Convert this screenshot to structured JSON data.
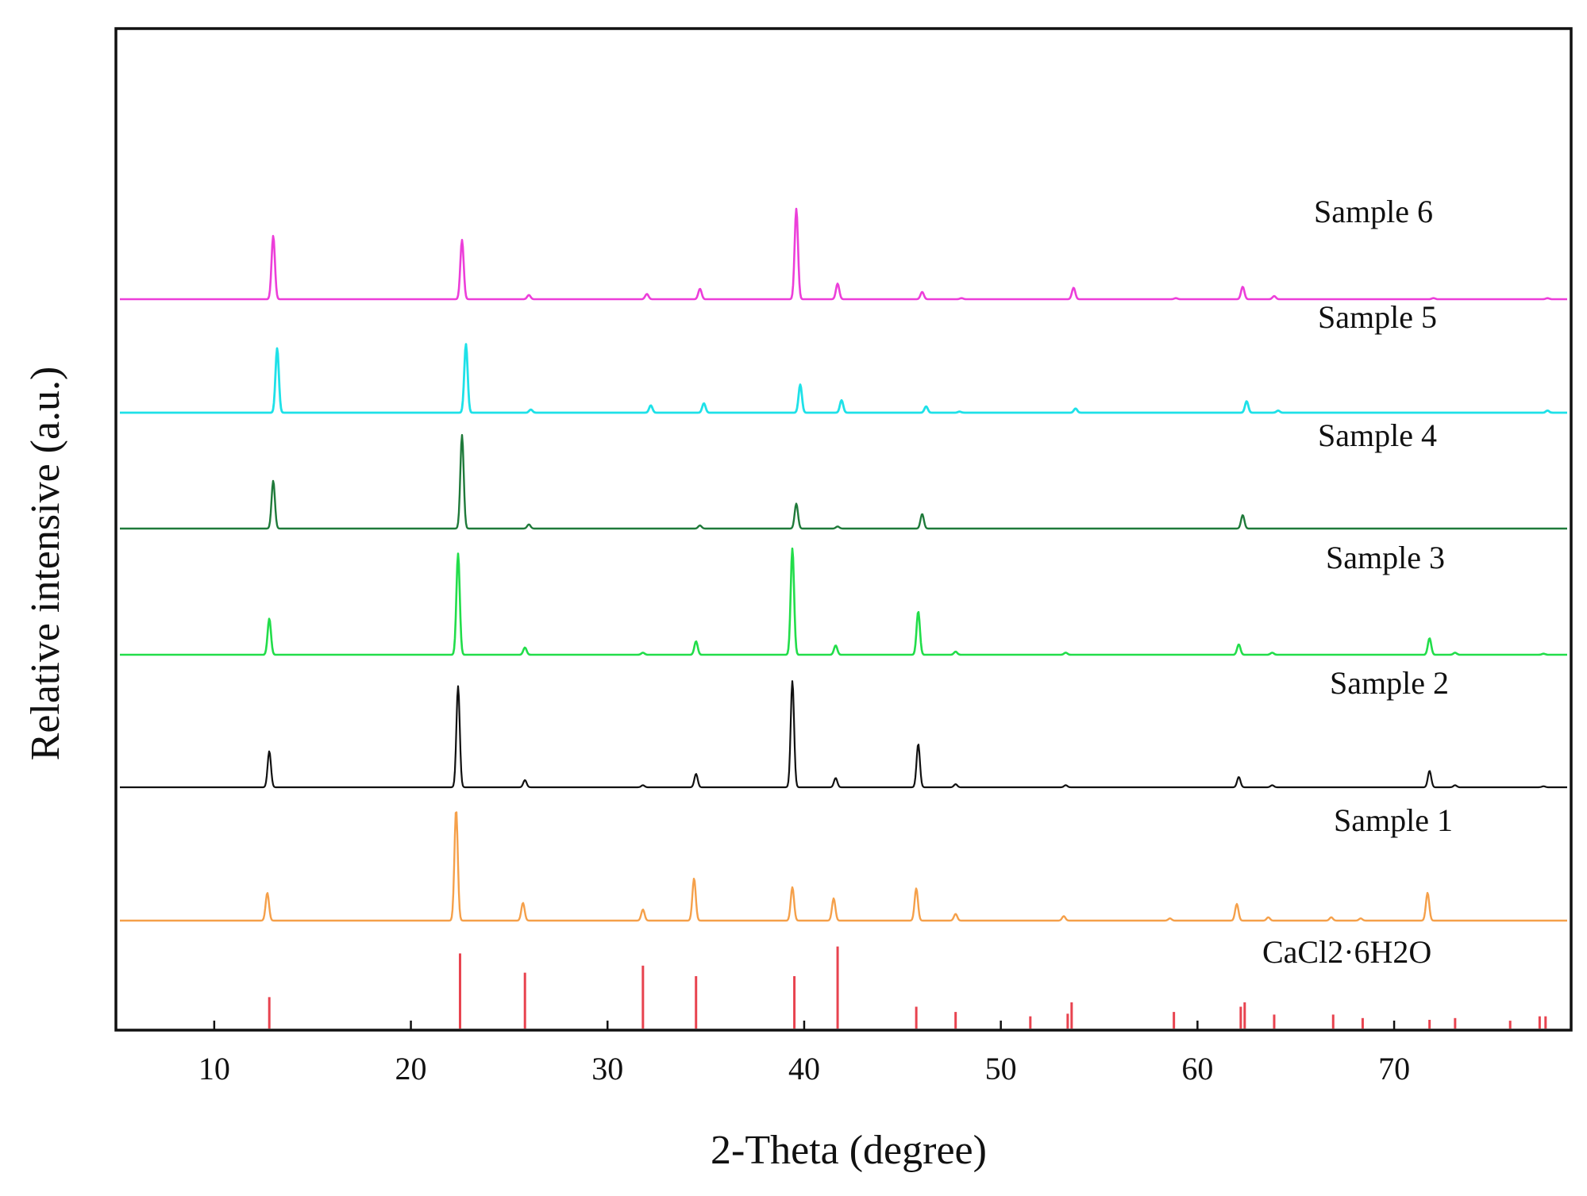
{
  "chart_data": {
    "type": "line",
    "title": "",
    "xlabel": "2-Theta (degree)",
    "ylabel": "Relative intensive (a.u.)",
    "xlim": [
      5,
      79
    ],
    "xticks": [
      10,
      20,
      30,
      40,
      50,
      60,
      70
    ],
    "yticks": [],
    "grid": false,
    "legend": "inline labels, right side",
    "reference": {
      "name": "CaCl2·6H2O",
      "color": "#e8434f",
      "sticks": [
        {
          "x": 12.8,
          "h": 0.36
        },
        {
          "x": 22.5,
          "h": 0.86
        },
        {
          "x": 25.8,
          "h": 0.64
        },
        {
          "x": 31.8,
          "h": 0.72
        },
        {
          "x": 34.5,
          "h": 0.6
        },
        {
          "x": 39.5,
          "h": 0.6
        },
        {
          "x": 41.7,
          "h": 0.94
        },
        {
          "x": 45.7,
          "h": 0.25
        },
        {
          "x": 47.7,
          "h": 0.19
        },
        {
          "x": 51.5,
          "h": 0.14
        },
        {
          "x": 53.4,
          "h": 0.17
        },
        {
          "x": 53.6,
          "h": 0.3
        },
        {
          "x": 58.8,
          "h": 0.19
        },
        {
          "x": 62.2,
          "h": 0.25
        },
        {
          "x": 62.4,
          "h": 0.3
        },
        {
          "x": 63.9,
          "h": 0.16
        },
        {
          "x": 66.9,
          "h": 0.16
        },
        {
          "x": 68.4,
          "h": 0.12
        },
        {
          "x": 71.8,
          "h": 0.1
        },
        {
          "x": 73.1,
          "h": 0.12
        },
        {
          "x": 75.9,
          "h": 0.09
        },
        {
          "x": 77.4,
          "h": 0.14
        },
        {
          "x": 77.7,
          "h": 0.14
        }
      ]
    },
    "series": [
      {
        "name": "Sample 1",
        "color": "#f5a04a",
        "width": 2.4,
        "peaks": [
          {
            "x": 12.7,
            "h": 0.25
          },
          {
            "x": 22.3,
            "h": 1.0
          },
          {
            "x": 25.7,
            "h": 0.16
          },
          {
            "x": 31.8,
            "h": 0.1
          },
          {
            "x": 34.4,
            "h": 0.38
          },
          {
            "x": 39.4,
            "h": 0.3
          },
          {
            "x": 41.5,
            "h": 0.2
          },
          {
            "x": 45.7,
            "h": 0.29
          },
          {
            "x": 47.7,
            "h": 0.06
          },
          {
            "x": 53.2,
            "h": 0.04
          },
          {
            "x": 58.6,
            "h": 0.02
          },
          {
            "x": 62.0,
            "h": 0.15
          },
          {
            "x": 63.6,
            "h": 0.03
          },
          {
            "x": 66.8,
            "h": 0.03
          },
          {
            "x": 68.3,
            "h": 0.02
          },
          {
            "x": 71.7,
            "h": 0.25
          }
        ]
      },
      {
        "name": "Sample 2",
        "color": "#111111",
        "width": 2.2,
        "peaks": [
          {
            "x": 12.8,
            "h": 0.35
          },
          {
            "x": 22.4,
            "h": 0.98
          },
          {
            "x": 25.8,
            "h": 0.07
          },
          {
            "x": 31.8,
            "h": 0.02
          },
          {
            "x": 34.5,
            "h": 0.13
          },
          {
            "x": 39.4,
            "h": 1.03
          },
          {
            "x": 41.6,
            "h": 0.09
          },
          {
            "x": 45.8,
            "h": 0.42
          },
          {
            "x": 47.7,
            "h": 0.03
          },
          {
            "x": 53.3,
            "h": 0.02
          },
          {
            "x": 62.1,
            "h": 0.1
          },
          {
            "x": 63.8,
            "h": 0.02
          },
          {
            "x": 71.8,
            "h": 0.16
          },
          {
            "x": 73.1,
            "h": 0.02
          },
          {
            "x": 77.6,
            "h": 0.01
          }
        ]
      },
      {
        "name": "Sample 3",
        "color": "#22dd4a",
        "width": 2.6,
        "peaks": [
          {
            "x": 12.8,
            "h": 0.35
          },
          {
            "x": 22.4,
            "h": 0.98
          },
          {
            "x": 25.8,
            "h": 0.07
          },
          {
            "x": 31.8,
            "h": 0.02
          },
          {
            "x": 34.5,
            "h": 0.13
          },
          {
            "x": 39.4,
            "h": 1.03
          },
          {
            "x": 41.6,
            "h": 0.09
          },
          {
            "x": 45.8,
            "h": 0.42
          },
          {
            "x": 47.7,
            "h": 0.03
          },
          {
            "x": 53.3,
            "h": 0.02
          },
          {
            "x": 62.1,
            "h": 0.1
          },
          {
            "x": 63.8,
            "h": 0.02
          },
          {
            "x": 71.8,
            "h": 0.16
          },
          {
            "x": 73.1,
            "h": 0.02
          },
          {
            "x": 77.6,
            "h": 0.01
          }
        ]
      },
      {
        "name": "Sample 4",
        "color": "#1f7a3a",
        "width": 2.4,
        "peaks": [
          {
            "x": 13.0,
            "h": 0.46
          },
          {
            "x": 22.6,
            "h": 0.9
          },
          {
            "x": 26.0,
            "h": 0.04
          },
          {
            "x": 34.7,
            "h": 0.03
          },
          {
            "x": 39.6,
            "h": 0.24
          },
          {
            "x": 41.7,
            "h": 0.02
          },
          {
            "x": 46.0,
            "h": 0.14
          },
          {
            "x": 62.3,
            "h": 0.13
          }
        ]
      },
      {
        "name": "Sample 5",
        "color": "#1ee1e8",
        "width": 2.8,
        "peaks": [
          {
            "x": 13.2,
            "h": 0.62
          },
          {
            "x": 22.8,
            "h": 0.66
          },
          {
            "x": 26.1,
            "h": 0.03
          },
          {
            "x": 32.2,
            "h": 0.07
          },
          {
            "x": 34.9,
            "h": 0.09
          },
          {
            "x": 39.8,
            "h": 0.27
          },
          {
            "x": 41.9,
            "h": 0.12
          },
          {
            "x": 46.2,
            "h": 0.06
          },
          {
            "x": 47.9,
            "h": 0.01
          },
          {
            "x": 53.8,
            "h": 0.04
          },
          {
            "x": 62.5,
            "h": 0.11
          },
          {
            "x": 64.1,
            "h": 0.02
          },
          {
            "x": 77.8,
            "h": 0.02
          }
        ]
      },
      {
        "name": "Sample 6",
        "color": "#ec3ed9",
        "width": 2.6,
        "peaks": [
          {
            "x": 13.0,
            "h": 0.61
          },
          {
            "x": 22.6,
            "h": 0.57
          },
          {
            "x": 26.0,
            "h": 0.04
          },
          {
            "x": 32.0,
            "h": 0.05
          },
          {
            "x": 34.7,
            "h": 0.1
          },
          {
            "x": 39.6,
            "h": 0.87
          },
          {
            "x": 41.7,
            "h": 0.15
          },
          {
            "x": 46.0,
            "h": 0.07
          },
          {
            "x": 48.0,
            "h": 0.01
          },
          {
            "x": 53.7,
            "h": 0.11
          },
          {
            "x": 58.9,
            "h": 0.01
          },
          {
            "x": 62.3,
            "h": 0.12
          },
          {
            "x": 63.9,
            "h": 0.03
          },
          {
            "x": 72.0,
            "h": 0.01
          },
          {
            "x": 77.8,
            "h": 0.01
          }
        ]
      }
    ]
  }
}
